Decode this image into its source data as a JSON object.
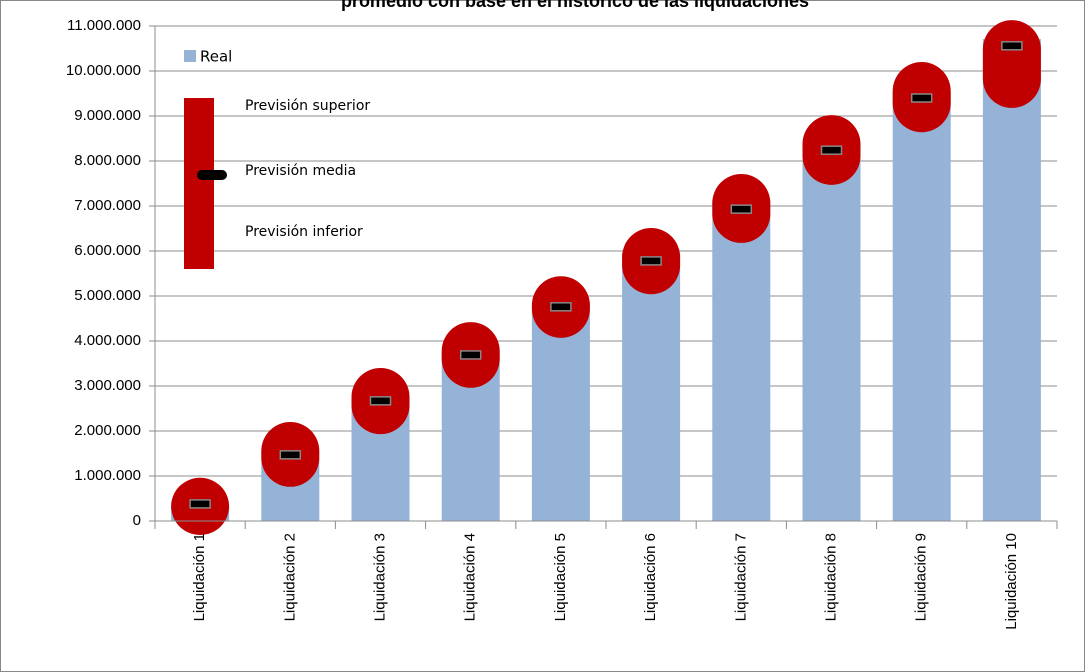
{
  "chart_data": {
    "type": "bar",
    "title": "promedio con base en el histórico de las liquidaciones",
    "categories": [
      "Liquidación 1",
      "Liquidación 2",
      "Liquidación 3",
      "Liquidación 4",
      "Liquidación 5",
      "Liquidación 6",
      "Liquidación 7",
      "Liquidación 8",
      "Liquidación 9",
      "Liquidación 10"
    ],
    "series": [
      {
        "name": "Real",
        "color": "#95b3d7",
        "values": [
          330000,
          1400000,
          2600000,
          3730000,
          4840000,
          5960000,
          7130000,
          8420000,
          9560000,
          10710000
        ]
      }
    ],
    "forecast": {
      "color": "#c00000",
      "mid_color": "#000000",
      "upper_name": "Previsión superior",
      "mid_name": "Previsión media",
      "lower_name": "Previsión inferior",
      "upper": [
        960000,
        2200000,
        3400000,
        4420000,
        5440000,
        6510000,
        7710000,
        9020000,
        10200000,
        11130000
      ],
      "mid": [
        380000,
        1470000,
        2670000,
        3690000,
        4760000,
        5780000,
        6930000,
        8240000,
        9400000,
        10560000
      ],
      "lower": [
        -310000,
        760000,
        1930000,
        2960000,
        4070000,
        5040000,
        6180000,
        7470000,
        8640000,
        9180000
      ]
    },
    "ylim": [
      0,
      11000000
    ],
    "yticks": [
      0,
      {
        "value": 1000000,
        "label": "1.000.000"
      },
      {
        "value": 2000000,
        "label": "2.000.000"
      },
      {
        "value": 3000000,
        "label": "3.000.000"
      },
      {
        "value": 4000000,
        "label": "4.000.000"
      },
      {
        "value": 5000000,
        "label": "5.000.000"
      },
      {
        "value": 6000000,
        "label": "6.000.000"
      },
      {
        "value": 7000000,
        "label": "7.000.000"
      },
      {
        "value": 8000000,
        "label": "8.000.000"
      },
      {
        "value": 9000000,
        "label": "9.000.000"
      },
      {
        "value": 10000000,
        "label": "10.000.000"
      },
      {
        "value": 11000000,
        "label": "11.000.000"
      }
    ],
    "grid": true
  }
}
